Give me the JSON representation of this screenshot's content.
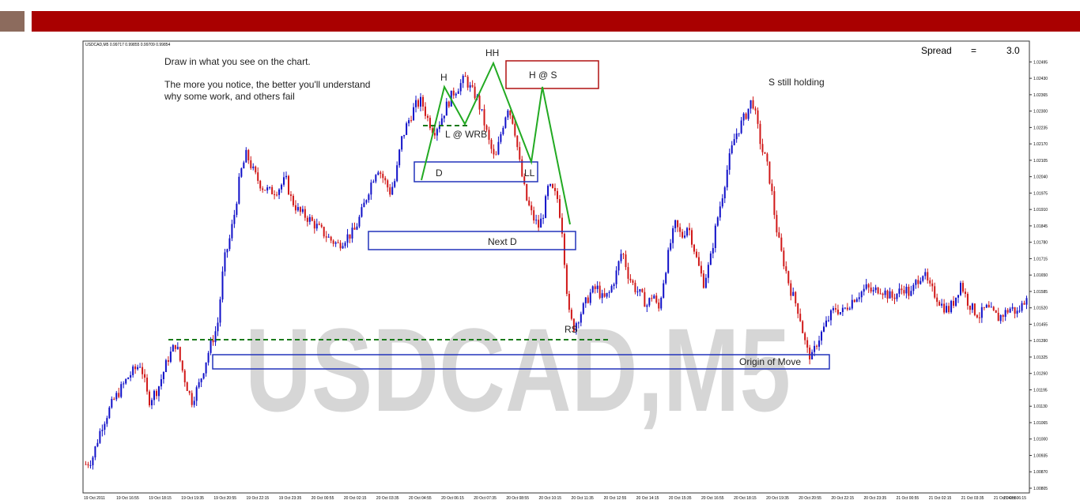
{
  "slide": {
    "accent": "#a90000",
    "square_color": "#8c6b5d"
  },
  "chart_data": {
    "type": "candlestick",
    "symbol_header": "USDCAD,M5  0.99717 0.99855 0.99709 0.99854",
    "watermark": "USDCAD,M5",
    "spread_label": "Spread",
    "spread_equals": "=",
    "spread_value": "3.0",
    "colors": {
      "up": "#1010c8",
      "down": "#d01818",
      "watermark": "#c8c8c8",
      "box_blue": "#2233bb",
      "box_red": "#b01010",
      "dashed": "#1a7a1a",
      "zigzag": "#22aa22"
    },
    "ylim": [
      1.00805,
      1.0254
    ],
    "y_ticks": [
      "1.02495",
      "1.02430",
      "1.02365",
      "1.02300",
      "1.02235",
      "1.02170",
      "1.02105",
      "1.02040",
      "1.01975",
      "1.01910",
      "1.01845",
      "1.01780",
      "1.01715",
      "1.01650",
      "1.01585",
      "1.01520",
      "1.01455",
      "1.01390",
      "1.01325",
      "1.01260",
      "1.01195",
      "1.01130",
      "1.01065",
      "1.01000",
      "1.00935",
      "1.00870",
      "1.00805"
    ],
    "x_ticks": [
      "19 Oct 2011",
      "19 Oct 16:55",
      "19 Oct 18:15",
      "19 Oct 19:35",
      "19 Oct 20:55",
      "19 Oct 22:15",
      "19 Oct 23:35",
      "20 Oct 00:55",
      "20 Oct 02:15",
      "20 Oct 03:35",
      "20 Oct 04:55",
      "20 Oct 06:15",
      "20 Oct 07:35",
      "20 Oct 08:55",
      "20 Oct 10:15",
      "20 Oct 11:35",
      "20 Oct 12:55",
      "20 Oct 14:15",
      "20 Oct 15:35",
      "20 Oct 16:55",
      "20 Oct 18:15",
      "20 Oct 19:35",
      "20 Oct 20:55",
      "20 Oct 22:15",
      "20 Oct 23:35",
      "21 Oct 00:55",
      "21 Oct 02:15",
      "21 Oct 03:35",
      "21 Oct 04:55",
      "21 Oct 06:15"
    ],
    "price_path": [
      [
        0,
        1.009
      ],
      [
        8,
        1.0092
      ],
      [
        20,
        1.0105
      ],
      [
        35,
        1.0115
      ],
      [
        55,
        1.0125
      ],
      [
        70,
        1.013
      ],
      [
        80,
        1.0115
      ],
      [
        92,
        1.012
      ],
      [
        105,
        1.0132
      ],
      [
        115,
        1.0138
      ],
      [
        125,
        1.0125
      ],
      [
        135,
        1.0115
      ],
      [
        145,
        1.0122
      ],
      [
        155,
        1.0133
      ],
      [
        160,
        1.0138
      ],
      [
        168,
        1.0145
      ],
      [
        176,
        1.017
      ],
      [
        184,
        1.018
      ],
      [
        190,
        1.019
      ],
      [
        197,
        1.0205
      ],
      [
        205,
        1.0213
      ],
      [
        215,
        1.0205
      ],
      [
        225,
        1.02
      ],
      [
        235,
        1.0198
      ],
      [
        245,
        1.0199
      ],
      [
        255,
        1.0203
      ],
      [
        262,
        1.0195
      ],
      [
        272,
        1.019
      ],
      [
        282,
        1.0188
      ],
      [
        292,
        1.0185
      ],
      [
        302,
        1.0182
      ],
      [
        312,
        1.0179
      ],
      [
        322,
        1.0177
      ],
      [
        332,
        1.018
      ],
      [
        342,
        1.0182
      ],
      [
        352,
        1.019
      ],
      [
        362,
        1.02
      ],
      [
        372,
        1.0208
      ],
      [
        380,
        1.0203
      ],
      [
        388,
        1.0198
      ],
      [
        395,
        1.0203
      ],
      [
        402,
        1.0218
      ],
      [
        410,
        1.0225
      ],
      [
        420,
        1.0232
      ],
      [
        428,
        1.0234
      ],
      [
        436,
        1.0227
      ],
      [
        444,
        1.0222
      ],
      [
        452,
        1.0226
      ],
      [
        460,
        1.0232
      ],
      [
        468,
        1.0237
      ],
      [
        476,
        1.024
      ],
      [
        484,
        1.0243
      ],
      [
        492,
        1.0238
      ],
      [
        498,
        1.0236
      ],
      [
        506,
        1.0228
      ],
      [
        514,
        1.0218
      ],
      [
        522,
        1.021
      ],
      [
        530,
        1.0222
      ],
      [
        538,
        1.0232
      ],
      [
        546,
        1.0225
      ],
      [
        554,
        1.0208
      ],
      [
        562,
        1.0195
      ],
      [
        570,
        1.0188
      ],
      [
        578,
        1.0184
      ],
      [
        584,
        1.019
      ],
      [
        590,
        1.02
      ],
      [
        596,
        1.0198
      ],
      [
        602,
        1.0195
      ],
      [
        608,
        1.0182
      ],
      [
        612,
        1.0165
      ],
      [
        616,
        1.015
      ],
      [
        622,
        1.0144
      ],
      [
        628,
        1.0148
      ],
      [
        636,
        1.0153
      ],
      [
        644,
        1.0158
      ],
      [
        652,
        1.016
      ],
      [
        660,
        1.0155
      ],
      [
        668,
        1.0158
      ],
      [
        676,
        1.0165
      ],
      [
        684,
        1.0175
      ],
      [
        692,
        1.0165
      ],
      [
        700,
        1.016
      ],
      [
        708,
        1.0157
      ],
      [
        716,
        1.0153
      ],
      [
        724,
        1.0158
      ],
      [
        730,
        1.015
      ],
      [
        738,
        1.0165
      ],
      [
        746,
        1.0178
      ],
      [
        752,
        1.0185
      ],
      [
        760,
        1.018
      ],
      [
        768,
        1.0185
      ],
      [
        774,
        1.0178
      ],
      [
        780,
        1.017
      ],
      [
        788,
        1.0162
      ],
      [
        796,
        1.017
      ],
      [
        804,
        1.0185
      ],
      [
        812,
        1.0197
      ],
      [
        820,
        1.021
      ],
      [
        828,
        1.022
      ],
      [
        836,
        1.0225
      ],
      [
        844,
        1.023
      ],
      [
        850,
        1.0235
      ],
      [
        856,
        1.0225
      ],
      [
        862,
        1.0215
      ],
      [
        868,
        1.021
      ],
      [
        874,
        1.02
      ],
      [
        880,
        1.0185
      ],
      [
        886,
        1.0175
      ],
      [
        892,
        1.0168
      ],
      [
        898,
        1.016
      ],
      [
        904,
        1.0155
      ],
      [
        910,
        1.015
      ],
      [
        916,
        1.014
      ],
      [
        920,
        1.0135
      ],
      [
        926,
        1.0132
      ],
      [
        932,
        1.0138
      ],
      [
        940,
        1.0143
      ],
      [
        948,
        1.0148
      ],
      [
        956,
        1.0152
      ],
      [
        964,
        1.015
      ],
      [
        972,
        1.0153
      ],
      [
        980,
        1.0156
      ],
      [
        988,
        1.0158
      ],
      [
        996,
        1.016
      ],
      [
        1004,
        1.0158
      ],
      [
        1012,
        1.016
      ],
      [
        1020,
        1.0158
      ],
      [
        1028,
        1.0156
      ],
      [
        1036,
        1.0158
      ],
      [
        1044,
        1.016
      ],
      [
        1052,
        1.0157
      ],
      [
        1060,
        1.0163
      ],
      [
        1068,
        1.0166
      ],
      [
        1076,
        1.016
      ],
      [
        1084,
        1.0157
      ],
      [
        1092,
        1.0153
      ],
      [
        1100,
        1.0151
      ],
      [
        1108,
        1.0155
      ],
      [
        1116,
        1.0162
      ],
      [
        1124,
        1.0155
      ],
      [
        1132,
        1.0151
      ],
      [
        1140,
        1.0149
      ],
      [
        1148,
        1.0152
      ],
      [
        1156,
        1.015
      ],
      [
        1164,
        1.0148
      ],
      [
        1172,
        1.015
      ],
      [
        1180,
        1.0152
      ],
      [
        1188,
        1.015
      ],
      [
        1196,
        1.0154
      ],
      [
        1200,
        1.0158
      ]
    ],
    "annotations": {
      "note_line1": "Draw in what you see on the chart.",
      "note_line2": "The more you notice, the better you'll understand",
      "note_line3": "why some work, and others fail",
      "label_HH": "HH",
      "label_H": "H",
      "label_HS": "H @ S",
      "label_LWRB": "L @  WRB",
      "label_D": "D",
      "label_LL": "LL",
      "label_NextD": "Next D",
      "label_RS": "RS",
      "label_origin": "Origin of Move",
      "label_sholding": "S still holding"
    },
    "levels": {
      "dashed_low": 1.0139,
      "dashed_top": 1.02213
    }
  }
}
